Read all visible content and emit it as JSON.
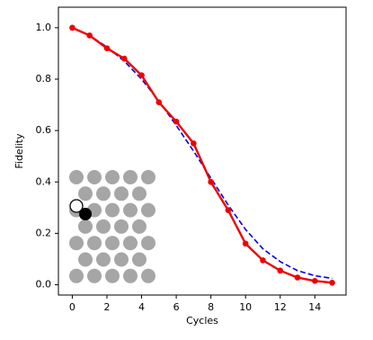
{
  "chart_data": {
    "type": "line",
    "xlabel": "Cycles",
    "ylabel": "Fidelity",
    "x": [
      0,
      1,
      2,
      3,
      4,
      5,
      6,
      7,
      8,
      9,
      10,
      11,
      12,
      13,
      14,
      15
    ],
    "series": [
      {
        "color": "#0000dd",
        "style": "dashed",
        "markers": false,
        "values": [
          1.0,
          0.97,
          0.925,
          0.87,
          0.8,
          0.715,
          0.62,
          0.52,
          0.415,
          0.31,
          0.215,
          0.14,
          0.09,
          0.055,
          0.035,
          0.025
        ]
      },
      {
        "color": "#ee0000",
        "style": "solid",
        "markers": true,
        "values": [
          1.0,
          0.97,
          0.92,
          0.88,
          0.815,
          0.71,
          0.635,
          0.55,
          0.4,
          0.29,
          0.16,
          0.095,
          0.055,
          0.028,
          0.015,
          0.008
        ]
      }
    ],
    "xlim": [
      -0.8,
      15.8
    ],
    "ylim": [
      -0.04,
      1.08
    ],
    "xticks": [
      0,
      2,
      4,
      6,
      8,
      10,
      12,
      14
    ],
    "yticks": [
      {
        "value": 0,
        "label": "0.0"
      },
      0.2,
      0.4,
      0.6,
      0.8,
      {
        "value": 1,
        "label": "1.0"
      }
    ]
  }
}
